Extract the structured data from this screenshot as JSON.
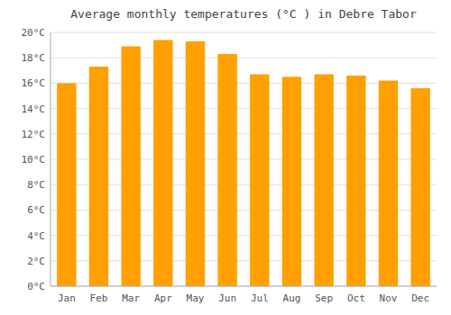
{
  "chart_data": {
    "type": "bar",
    "title": "Average monthly temperatures (°C ) in Debre Tabor",
    "categories": [
      "Jan",
      "Feb",
      "Mar",
      "Apr",
      "May",
      "Jun",
      "Jul",
      "Aug",
      "Sep",
      "Oct",
      "Nov",
      "Dec"
    ],
    "values": [
      16.0,
      17.3,
      18.9,
      19.4,
      19.3,
      18.3,
      16.7,
      16.5,
      16.7,
      16.6,
      16.2,
      15.6
    ],
    "color": "#FFA000",
    "ylim": [
      0,
      20
    ],
    "yticks": [
      {
        "value": 0,
        "label": "0°C"
      },
      {
        "value": 2,
        "label": "2°C"
      },
      {
        "value": 4,
        "label": "4°C"
      },
      {
        "value": 6,
        "label": "6°C"
      },
      {
        "value": 8,
        "label": "8°C"
      },
      {
        "value": 10,
        "label": "10°C"
      },
      {
        "value": 12,
        "label": "12°C"
      },
      {
        "value": 14,
        "label": "14°C"
      },
      {
        "value": 16,
        "label": "16°C"
      },
      {
        "value": 18,
        "label": "18°C"
      },
      {
        "value": 20,
        "label": "20°C"
      }
    ],
    "grid": true
  }
}
